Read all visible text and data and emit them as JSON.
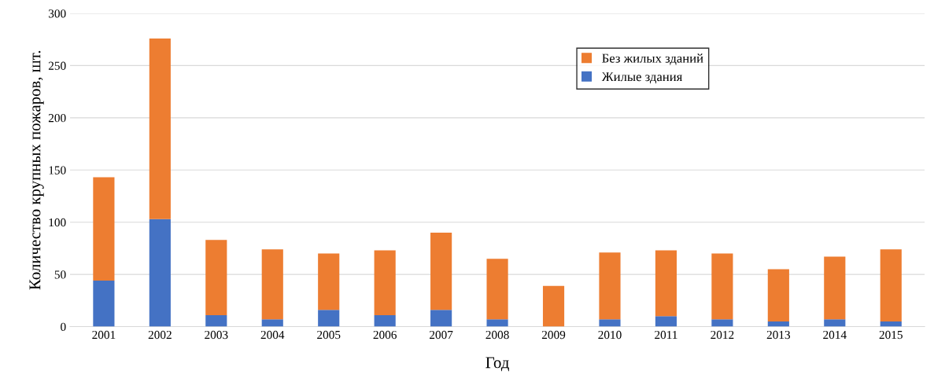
{
  "chart_data": {
    "type": "bar",
    "stacked": true,
    "xlabel": "Год",
    "ylabel": "Количество крупных пожаров, шт.",
    "categories": [
      "2001",
      "2002",
      "2003",
      "2004",
      "2005",
      "2006",
      "2007",
      "2008",
      "2009",
      "2010",
      "2011",
      "2012",
      "2013",
      "2014",
      "2015"
    ],
    "series": [
      {
        "name": "Жилые здания",
        "color": "#4472c4",
        "values": [
          44,
          103,
          11,
          7,
          16,
          11,
          16,
          7,
          0,
          7,
          10,
          7,
          5,
          7,
          5
        ]
      },
      {
        "name": "Без жилых зданий",
        "color": "#ed7d31",
        "values": [
          99,
          173,
          72,
          67,
          54,
          62,
          74,
          58,
          39,
          64,
          63,
          63,
          50,
          60,
          69
        ]
      }
    ],
    "ylim": [
      0,
      300
    ],
    "yticks": [
      0,
      50,
      100,
      150,
      200,
      250,
      300
    ],
    "grid": "y",
    "legend": "top right"
  }
}
